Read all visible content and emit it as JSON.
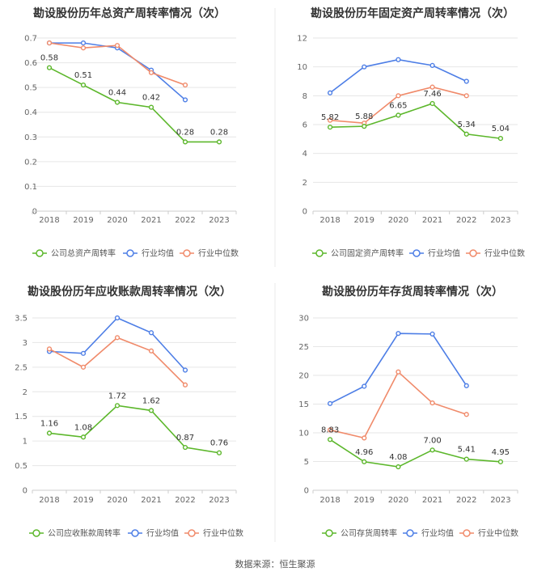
{
  "years": [
    "2018",
    "2019",
    "2020",
    "2021",
    "2022",
    "2023"
  ],
  "colors": {
    "company": "#5cb72b",
    "avg": "#4d7ee6",
    "median": "#f08a6a"
  },
  "footer": {
    "source": "数据来源：恒生聚源"
  },
  "chart_data": [
    {
      "type": "line",
      "title": "勘设股份历年总资产周转率情况（次）",
      "categories": [
        "2018",
        "2019",
        "2020",
        "2021",
        "2022",
        "2023"
      ],
      "ylim": [
        0,
        0.7
      ],
      "yticks": [
        "0",
        "0.1",
        "0.2",
        "0.3",
        "0.4",
        "0.5",
        "0.6",
        "0.7"
      ],
      "series": [
        {
          "name": "公司总资产周转率",
          "role": "company",
          "values": [
            0.58,
            0.51,
            0.44,
            0.42,
            0.28,
            0.28
          ],
          "labels": [
            "0.58",
            "0.51",
            "0.44",
            "0.42",
            "0.28",
            "0.28"
          ]
        },
        {
          "name": "行业均值",
          "role": "avg",
          "values": [
            0.68,
            0.68,
            0.66,
            0.57,
            0.45,
            null
          ]
        },
        {
          "name": "行业中位数",
          "role": "median",
          "values": [
            0.68,
            0.66,
            0.67,
            0.56,
            0.51,
            null
          ]
        }
      ]
    },
    {
      "type": "line",
      "title": "勘设股份历年固定资产周转率情况（次）",
      "categories": [
        "2018",
        "2019",
        "2020",
        "2021",
        "2022",
        "2023"
      ],
      "ylim": [
        0,
        12
      ],
      "yticks": [
        "0",
        "2",
        "4",
        "6",
        "8",
        "10",
        "12"
      ],
      "series": [
        {
          "name": "公司固定资产周转率",
          "role": "company",
          "values": [
            5.82,
            5.88,
            6.65,
            7.46,
            5.34,
            5.04
          ],
          "labels": [
            "5.82",
            "5.88",
            "6.65",
            "7.46",
            "5.34",
            "5.04"
          ]
        },
        {
          "name": "行业均值",
          "role": "avg",
          "values": [
            8.2,
            10.0,
            10.5,
            10.1,
            9.0,
            null
          ]
        },
        {
          "name": "行业中位数",
          "role": "median",
          "values": [
            6.3,
            6.1,
            8.0,
            8.6,
            8.0,
            null
          ]
        }
      ]
    },
    {
      "type": "line",
      "title": "勘设股份历年应收账款周转率情况（次）",
      "categories": [
        "2018",
        "2019",
        "2020",
        "2021",
        "2022",
        "2023"
      ],
      "ylim": [
        0,
        3.5
      ],
      "yticks": [
        "0",
        "0.5",
        "1",
        "1.5",
        "2",
        "2.5",
        "3",
        "3.5"
      ],
      "series": [
        {
          "name": "公司应收账款周转率",
          "role": "company",
          "values": [
            1.16,
            1.08,
            1.72,
            1.62,
            0.87,
            0.76
          ],
          "labels": [
            "1.16",
            "1.08",
            "1.72",
            "1.62",
            "0.87",
            "0.76"
          ]
        },
        {
          "name": "行业均值",
          "role": "avg",
          "values": [
            2.82,
            2.78,
            3.5,
            3.2,
            2.44,
            null
          ]
        },
        {
          "name": "行业中位数",
          "role": "median",
          "values": [
            2.87,
            2.5,
            3.1,
            2.83,
            2.14,
            null
          ]
        }
      ]
    },
    {
      "type": "line",
      "title": "勘设股份历年存货周转率情况（次）",
      "categories": [
        "2018",
        "2019",
        "2020",
        "2021",
        "2022",
        "2023"
      ],
      "ylim": [
        0,
        30
      ],
      "yticks": [
        "0",
        "5",
        "10",
        "15",
        "20",
        "25",
        "30"
      ],
      "series": [
        {
          "name": "公司存货周转率",
          "role": "company",
          "values": [
            8.83,
            4.96,
            4.08,
            7.0,
            5.41,
            4.95
          ],
          "labels": [
            "8.83",
            "4.96",
            "4.08",
            "7.00",
            "5.41",
            "4.95"
          ]
        },
        {
          "name": "行业均值",
          "role": "avg",
          "values": [
            15.1,
            18.1,
            27.3,
            27.2,
            18.2,
            null
          ]
        },
        {
          "name": "行业中位数",
          "role": "median",
          "values": [
            10.5,
            9.1,
            20.6,
            15.2,
            13.2,
            null
          ]
        }
      ]
    }
  ]
}
